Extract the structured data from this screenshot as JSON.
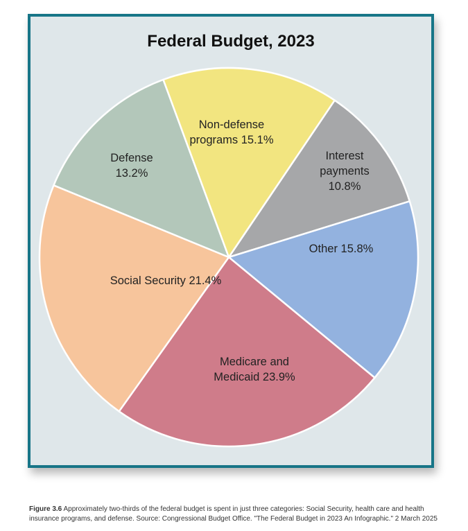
{
  "chart_data": {
    "type": "pie",
    "title": "Federal Budget, 2023",
    "slices": [
      {
        "label_lines": [
          "Interest",
          "payments",
          "10.8%"
        ],
        "label": "Interest payments",
        "value": 10.8,
        "color": "#a6a7a9"
      },
      {
        "label_lines": [
          "Other 15.8%"
        ],
        "label": "Other",
        "value": 15.8,
        "color": "#93b2df"
      },
      {
        "label_lines": [
          "Medicare and",
          "Medicaid 23.9%"
        ],
        "label": "Medicare and Medicaid",
        "value": 23.9,
        "color": "#cf7c8a"
      },
      {
        "label_lines": [
          "Social Security 21.4%"
        ],
        "label": "Social Security",
        "value": 21.4,
        "color": "#f7c59c"
      },
      {
        "label_lines": [
          "Defense",
          "13.2%"
        ],
        "label": "Defense",
        "value": 13.2,
        "color": "#b3c7ba"
      },
      {
        "label_lines": [
          "Non-defense",
          "programs 15.1%"
        ],
        "label": "Non-defense programs",
        "value": 15.1,
        "color": "#f2e580"
      }
    ],
    "start_angle_deg": -56,
    "direction": "clockwise"
  },
  "caption": {
    "figure_number": "Figure 3.6",
    "text": "Approximately two-thirds of the federal budget is spent in just three categories: Social Security, health care and health insurance programs, and defense. Source: Congressional Budget Office. \"The Federal Budget in 2023 An Infographic.\" 2 March 2025"
  }
}
